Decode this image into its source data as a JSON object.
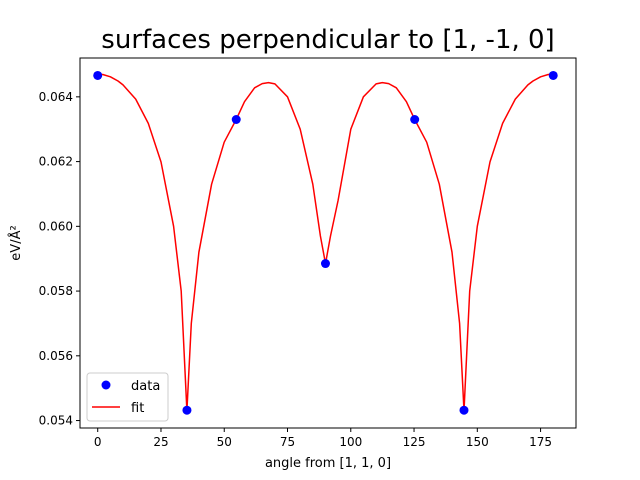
{
  "chart_data": {
    "type": "line",
    "title": "surfaces perpendicular to [1, -1, 0]",
    "xlabel": "angle from [1, 1, 0]",
    "ylabel": "eV/Å²",
    "xlim": [
      -7,
      189
    ],
    "ylim": [
      0.05377,
      0.0652
    ],
    "xticks": [
      0,
      25,
      50,
      75,
      100,
      125,
      150,
      175
    ],
    "yticks": [
      0.054,
      0.056,
      0.058,
      0.06,
      0.062,
      0.064
    ],
    "xtick_labels": [
      "0",
      "25",
      "50",
      "75",
      "100",
      "125",
      "150",
      "175"
    ],
    "ytick_labels": [
      "0.054",
      "0.056",
      "0.058",
      "0.060",
      "0.062",
      "0.064"
    ],
    "grid": false,
    "legend_position": "lower-left",
    "legend": [
      "data",
      "fit"
    ],
    "series": [
      {
        "name": "data",
        "style": "markers",
        "color": "#0000ff",
        "x": [
          0,
          35.26,
          54.74,
          90,
          125.26,
          144.74,
          180
        ],
        "y": [
          0.06466,
          0.05432,
          0.0633,
          0.05885,
          0.0633,
          0.05432,
          0.06466
        ]
      },
      {
        "name": "fit",
        "style": "line",
        "color": "#ff0000",
        "x": [
          0,
          2,
          5,
          8,
          10,
          15,
          20,
          25,
          30,
          33,
          35.26,
          37,
          40,
          45,
          50,
          54.74,
          58,
          62,
          65,
          67.5,
          70,
          75,
          80,
          85,
          88,
          90,
          92,
          95,
          100,
          105,
          110,
          112.5,
          115,
          118,
          122,
          125.26,
          130,
          135,
          140,
          143,
          144.74,
          147,
          150,
          155,
          160,
          165,
          170,
          172,
          175,
          178,
          180
        ],
        "y": [
          0.0647,
          0.06469,
          0.06462,
          0.06449,
          0.06437,
          0.06393,
          0.06318,
          0.06199,
          0.06,
          0.058,
          0.0543,
          0.057,
          0.0592,
          0.0613,
          0.0626,
          0.0633,
          0.06385,
          0.06428,
          0.06441,
          0.06444,
          0.0644,
          0.064,
          0.063,
          0.0613,
          0.0597,
          0.05885,
          0.0597,
          0.0608,
          0.063,
          0.064,
          0.0644,
          0.06444,
          0.06441,
          0.06428,
          0.06385,
          0.0633,
          0.0626,
          0.0613,
          0.0592,
          0.057,
          0.0543,
          0.058,
          0.06,
          0.06199,
          0.06318,
          0.06393,
          0.06437,
          0.06449,
          0.06462,
          0.06469,
          0.0647
        ]
      }
    ]
  }
}
